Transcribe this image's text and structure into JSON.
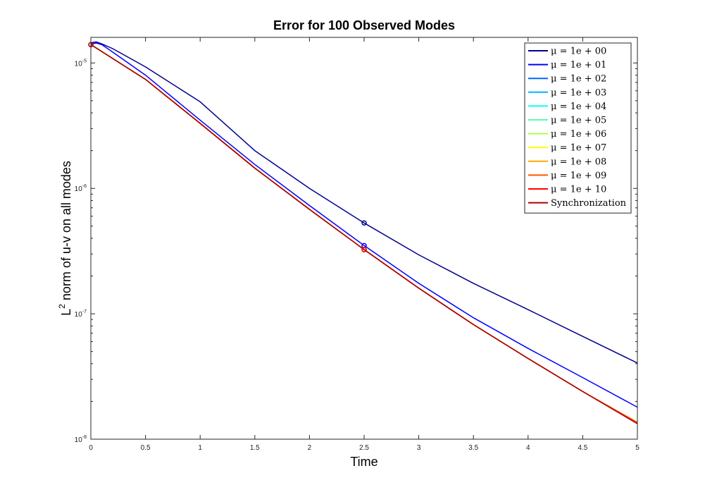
{
  "chart_data": {
    "type": "line",
    "title": "Error for 100 Observed Modes",
    "xlabel": "Time",
    "ylabel_main": "L",
    "ylabel_sup": "2",
    "ylabel_rest": " norm of u-v on all modes",
    "xlim": [
      0,
      5
    ],
    "ylim": [
      1e-08,
      1.6e-05
    ],
    "yscale": "log",
    "grid": false,
    "legend_position": "top-right",
    "x_ticks": [
      0,
      0.5,
      1,
      1.5,
      2,
      2.5,
      3,
      3.5,
      4,
      4.5,
      5
    ],
    "x_tick_labels": [
      "0",
      "0.5",
      "1",
      "1.5",
      "2",
      "2.5",
      "3",
      "3.5",
      "4",
      "4.5",
      "5"
    ],
    "y_ticks": [
      {
        "value": 1e-08,
        "base": "10",
        "exp": "-8"
      },
      {
        "value": 1e-07,
        "base": "10",
        "exp": "-7"
      },
      {
        "value": 1e-06,
        "base": "10",
        "exp": "-6"
      },
      {
        "value": 1e-05,
        "base": "10",
        "exp": "-5"
      }
    ],
    "series": [
      {
        "name": "μ = 1e + 00",
        "color": "#00008f",
        "x": [
          0,
          0.05,
          0.1,
          0.2,
          0.5,
          1,
          1.5,
          2,
          2.5,
          3,
          3.5,
          4,
          4.5,
          5
        ],
        "y": [
          1.45e-05,
          1.47e-05,
          1.42e-05,
          1.3e-05,
          9.3e-06,
          4.9e-06,
          2e-06,
          1e-06,
          5.3e-07,
          2.95e-07,
          1.75e-07,
          1.08e-07,
          6.6e-08,
          4.05e-08
        ],
        "marker_x": 2.5,
        "marker_y": 5.3e-07
      },
      {
        "name": "μ = 1e + 01",
        "color": "#0000ff",
        "x": [
          0,
          0.05,
          0.1,
          0.2,
          0.5,
          1,
          1.5,
          2,
          2.5,
          3,
          3.5,
          4,
          4.5,
          5
        ],
        "y": [
          1.42e-05,
          1.44e-05,
          1.4e-05,
          1.22e-05,
          8e-06,
          3.5e-06,
          1.55e-06,
          7.3e-07,
          3.5e-07,
          1.75e-07,
          9.3e-08,
          5.3e-08,
          3.1e-08,
          1.8e-08
        ],
        "marker_x": 2.5,
        "marker_y": 3.5e-07
      },
      {
        "name": "μ = 1e + 02",
        "color": "#0066ff",
        "x": [
          0,
          0.5,
          1,
          1.5,
          2,
          2.5,
          3,
          3.5,
          4,
          4.5,
          5
        ],
        "y": [
          1.4e-05,
          7.4e-06,
          3.3e-06,
          1.45e-06,
          6.8e-07,
          3.25e-07,
          1.6e-07,
          8.2e-08,
          4.4e-08,
          2.4e-08,
          1.36e-08
        ],
        "marker_x": 2.5,
        "marker_y": 3.25e-07
      },
      {
        "name": "μ = 1e + 03",
        "color": "#00b4ff",
        "x": [
          0,
          0.5,
          1,
          1.5,
          2,
          2.5,
          3,
          3.5,
          4,
          4.5,
          5
        ],
        "y": [
          1.4e-05,
          7.4e-06,
          3.3e-06,
          1.45e-06,
          6.8e-07,
          3.25e-07,
          1.6e-07,
          8.2e-08,
          4.4e-08,
          2.4e-08,
          1.36e-08
        ],
        "marker_x": 2.5,
        "marker_y": 3.25e-07
      },
      {
        "name": "μ = 1e + 04",
        "color": "#00ffff",
        "x": [
          0,
          0.5,
          1,
          1.5,
          2,
          2.5,
          3,
          3.5,
          4,
          4.5,
          5
        ],
        "y": [
          1.4e-05,
          7.4e-06,
          3.3e-06,
          1.45e-06,
          6.8e-07,
          3.25e-07,
          1.6e-07,
          8.2e-08,
          4.4e-08,
          2.4e-08,
          1.36e-08
        ],
        "marker_x": 2.5,
        "marker_y": 3.25e-07
      },
      {
        "name": "μ = 1e + 05",
        "color": "#55ffaa",
        "x": [
          0,
          0.5,
          1,
          1.5,
          2,
          2.5,
          3,
          3.5,
          4,
          4.5,
          5
        ],
        "y": [
          1.4e-05,
          7.4e-06,
          3.3e-06,
          1.45e-06,
          6.8e-07,
          3.25e-07,
          1.6e-07,
          8.2e-08,
          4.4e-08,
          2.4e-08,
          1.36e-08
        ],
        "marker_x": 2.5,
        "marker_y": 3.25e-07
      },
      {
        "name": "μ = 1e + 06",
        "color": "#aaff55",
        "x": [
          0,
          0.5,
          1,
          1.5,
          2,
          2.5,
          3,
          3.5,
          4,
          4.5,
          5
        ],
        "y": [
          1.4e-05,
          7.4e-06,
          3.3e-06,
          1.45e-06,
          6.8e-07,
          3.25e-07,
          1.6e-07,
          8.2e-08,
          4.4e-08,
          2.4e-08,
          1.36e-08
        ],
        "marker_x": 2.5,
        "marker_y": 3.25e-07
      },
      {
        "name": "μ = 1e + 07",
        "color": "#ffff00",
        "x": [
          0,
          0.5,
          1,
          1.5,
          2,
          2.5,
          3,
          3.5,
          4,
          4.5,
          5
        ],
        "y": [
          1.4e-05,
          7.4e-06,
          3.3e-06,
          1.45e-06,
          6.8e-07,
          3.25e-07,
          1.6e-07,
          8.2e-08,
          4.4e-08,
          2.4e-08,
          1.36e-08
        ],
        "marker_x": 2.5,
        "marker_y": 3.25e-07
      },
      {
        "name": "μ = 1e + 08",
        "color": "#ffaa00",
        "x": [
          0,
          0.5,
          1,
          1.5,
          2,
          2.5,
          3,
          3.5,
          4,
          4.5,
          5
        ],
        "y": [
          1.4e-05,
          7.4e-06,
          3.3e-06,
          1.45e-06,
          6.8e-07,
          3.25e-07,
          1.6e-07,
          8.2e-08,
          4.4e-08,
          2.4e-08,
          1.36e-08
        ],
        "marker_x": 2.5,
        "marker_y": 3.25e-07
      },
      {
        "name": "μ = 1e + 09",
        "color": "#ff5500",
        "x": [
          0,
          0.5,
          1,
          1.5,
          2,
          2.5,
          3,
          3.5,
          4,
          4.5,
          5
        ],
        "y": [
          1.4e-05,
          7.4e-06,
          3.3e-06,
          1.45e-06,
          6.8e-07,
          3.25e-07,
          1.6e-07,
          8.2e-08,
          4.4e-08,
          2.4e-08,
          1.36e-08
        ],
        "marker_x": 2.5,
        "marker_y": 3.25e-07
      },
      {
        "name": "μ = 1e + 10",
        "color": "#ff0000",
        "x": [
          0,
          0.5,
          1,
          1.5,
          2,
          2.5,
          3,
          3.5,
          4,
          4.5,
          5
        ],
        "y": [
          1.4e-05,
          7.4e-06,
          3.3e-06,
          1.45e-06,
          6.8e-07,
          3.25e-07,
          1.6e-07,
          8.2e-08,
          4.4e-08,
          2.4e-08,
          1.33e-08
        ],
        "marker_x": 2.5,
        "marker_y": 3.25e-07
      },
      {
        "name": "Synchronization",
        "color": "#aa0000",
        "x": [
          0,
          0.5,
          1,
          1.5,
          2,
          2.5,
          3,
          3.5,
          4,
          4.5,
          5
        ],
        "y": [
          1.4e-05,
          7.4e-06,
          3.3e-06,
          1.45e-06,
          6.8e-07,
          3.25e-07,
          1.6e-07,
          8.2e-08,
          4.4e-08,
          2.4e-08,
          1.33e-08
        ],
        "marker_x": 0,
        "marker_y": 1.4e-05
      }
    ]
  }
}
